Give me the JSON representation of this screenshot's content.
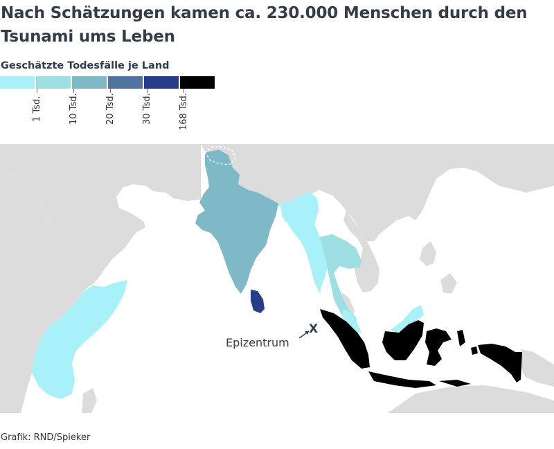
{
  "title": "Nach Schätzungen kamen ca. 230.000 Menschen durch den Tsunami ums Leben",
  "legend": {
    "title": "Geschätzte Todesfälle je Land",
    "colors": [
      "#a9f1f9",
      "#9edfe4",
      "#7fb8c6",
      "#51749f",
      "#263e89",
      "#000000"
    ],
    "ticks": [
      "1 Tsd.",
      "10 Tsd.",
      "20 Tsd.",
      "30 Tsd.",
      "168 Tsd."
    ]
  },
  "map": {
    "epicenter_label": "Epizentrum",
    "epicenter_marker": "X",
    "colors": {
      "land": "#dcdcdc",
      "water": "#ffffff"
    }
  },
  "credit": "Grafik: RND/Spieker"
}
